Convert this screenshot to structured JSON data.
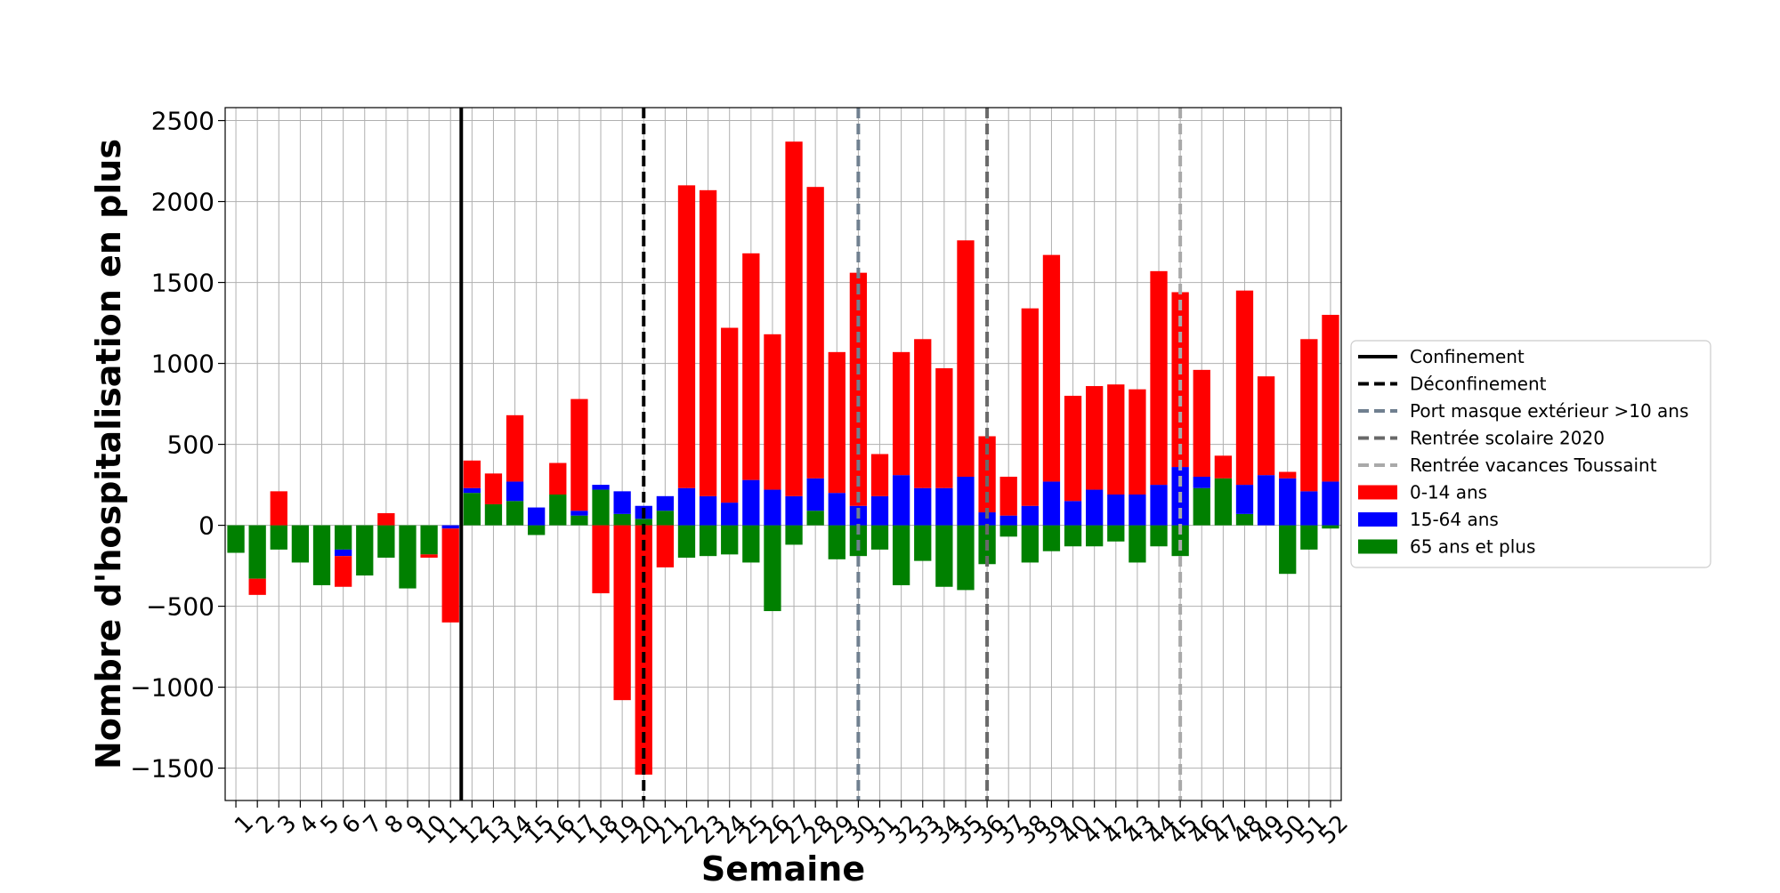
{
  "chart_data": {
    "type": "bar",
    "stacked": true,
    "xlabel": "Semaine",
    "ylabel": "Nombre d'hospitalisation en plus",
    "ylim": [
      -1700,
      2580
    ],
    "yticks": [
      -1500,
      -1000,
      -500,
      0,
      500,
      1000,
      1500,
      2000,
      2500
    ],
    "ytick_labels": [
      "−1500",
      "−1000",
      "−500",
      "0",
      "500",
      "1000",
      "1500",
      "2000",
      "2500"
    ],
    "grid": true,
    "legend_position": "center-right (outside plot)",
    "categories": [
      1,
      2,
      3,
      4,
      5,
      6,
      7,
      8,
      9,
      10,
      11,
      12,
      13,
      14,
      15,
      16,
      17,
      18,
      19,
      20,
      21,
      22,
      23,
      24,
      25,
      26,
      27,
      28,
      29,
      30,
      31,
      32,
      33,
      34,
      35,
      36,
      37,
      38,
      39,
      40,
      41,
      42,
      43,
      44,
      45,
      46,
      47,
      48,
      49,
      50,
      51,
      52
    ],
    "series": [
      {
        "name": "0-14 ans",
        "color": "#ff0000",
        "values": [
          0,
          -100,
          210,
          0,
          0,
          -190,
          0,
          75,
          0,
          -20,
          -580,
          170,
          190,
          410,
          0,
          195,
          690,
          -420,
          -1080,
          -1540,
          -260,
          1870,
          1890,
          1080,
          1400,
          960,
          2190,
          1800,
          870,
          1440,
          260,
          760,
          920,
          740,
          1460,
          470,
          240,
          1220,
          1400,
          650,
          640,
          680,
          650,
          1320,
          1080,
          660,
          140,
          1200,
          610,
          40,
          940,
          1030
        ]
      },
      {
        "name": "15-64 ans",
        "color": "#0000ff",
        "values": [
          0,
          0,
          0,
          0,
          0,
          -40,
          0,
          0,
          0,
          0,
          -20,
          30,
          0,
          120,
          110,
          0,
          30,
          30,
          140,
          80,
          90,
          230,
          180,
          140,
          280,
          220,
          180,
          200,
          200,
          120,
          180,
          310,
          230,
          230,
          300,
          80,
          60,
          120,
          270,
          150,
          220,
          190,
          190,
          250,
          360,
          70,
          0,
          180,
          310,
          290,
          210,
          270
        ]
      },
      {
        "name": "65 ans et plus",
        "color": "#008000",
        "values": [
          -170,
          -330,
          -150,
          -230,
          -370,
          -150,
          -310,
          -200,
          -390,
          -180,
          0,
          200,
          130,
          150,
          -60,
          190,
          60,
          220,
          70,
          40,
          90,
          -200,
          -190,
          -180,
          -230,
          -530,
          -120,
          90,
          -210,
          -190,
          -150,
          -370,
          -220,
          -380,
          -400,
          -240,
          -70,
          -230,
          -160,
          -130,
          -130,
          -100,
          -230,
          -130,
          -190,
          230,
          290,
          70,
          0,
          -300,
          -150,
          -20
        ]
      }
    ],
    "vlines": [
      {
        "label": "Confinement",
        "x": 11.5,
        "color": "#000000",
        "style": "solid"
      },
      {
        "label": "Déconfinement",
        "x": 20,
        "color": "#000000",
        "style": "dashed"
      },
      {
        "label": "Port masque extérieur >10 ans",
        "x": 30,
        "color": "#708090",
        "style": "dashed"
      },
      {
        "label": "Rentrée scolaire 2020",
        "x": 36,
        "color": "#696969",
        "style": "dashed"
      },
      {
        "label": "Rentrée vacances Toussaint",
        "x": 45,
        "color": "#a9a9a9",
        "style": "dashed"
      }
    ]
  }
}
